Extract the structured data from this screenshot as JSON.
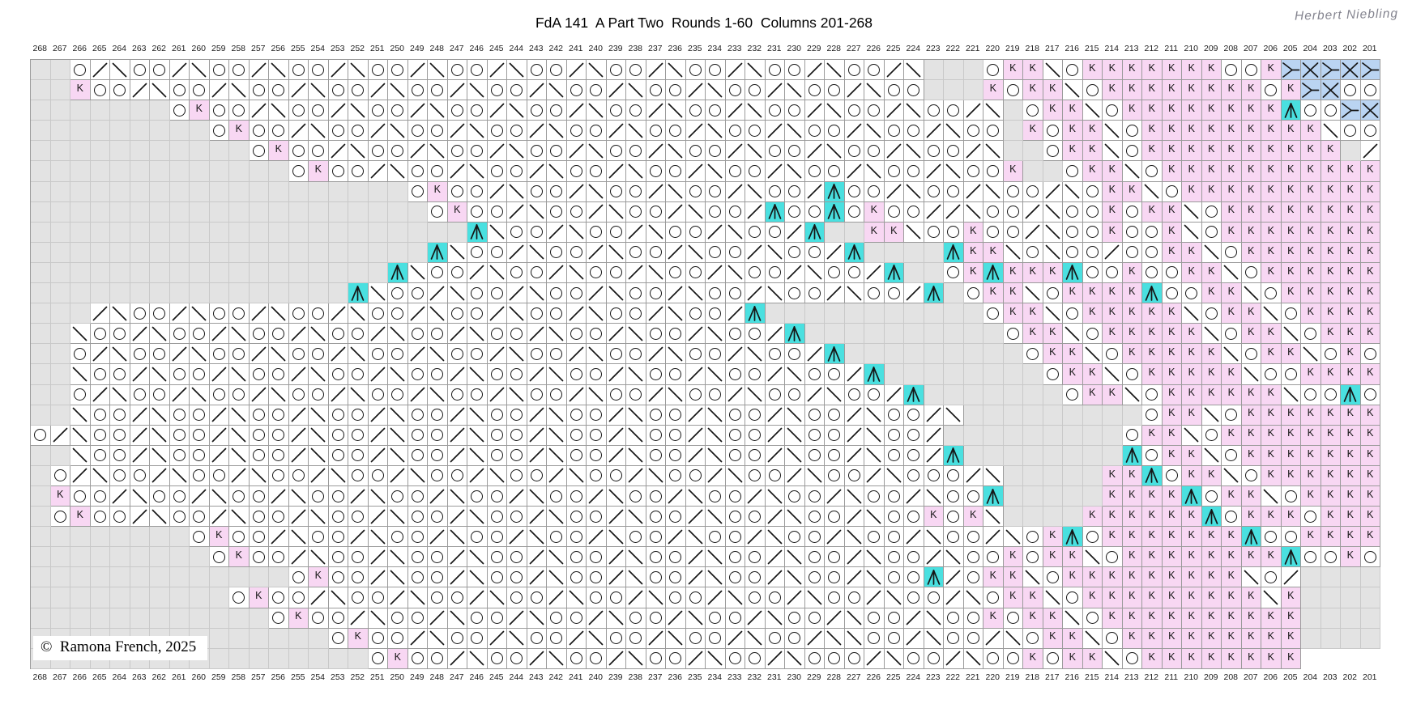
{
  "header": {
    "title": "FdA 141  A Part Two  Rounds 1-60  Columns 201-268",
    "signature": "Herbert Niebling"
  },
  "footer": {
    "copyright": "©  Ramona French, 2025"
  },
  "colors": {
    "pink": "#f8d7f3",
    "cyan": "#4ae0e0",
    "blue": "#bad4f2",
    "no_stitch_gray": "#e3e3e3",
    "grid_line": "#9b9b9b",
    "symbol": "#161616"
  },
  "grid": {
    "knit_letter": "K",
    "legend": {
      ".": "no-stitch",
      "O": "yarn-over",
      "/": "k2tog",
      "\\": "ssk",
      "K": "knit",
      "A": "central-double-decrease",
      "Y": "twist-stitch",
      "X": "crossed-stitch"
    },
    "column_labels": [
      268,
      267,
      266,
      265,
      264,
      263,
      262,
      261,
      260,
      259,
      258,
      257,
      256,
      255,
      254,
      253,
      252,
      251,
      250,
      249,
      248,
      247,
      246,
      245,
      244,
      243,
      242,
      241,
      240,
      239,
      238,
      237,
      236,
      235,
      234,
      233,
      232,
      231,
      230,
      229,
      228,
      227,
      226,
      225,
      224,
      223,
      222,
      221,
      220,
      219,
      218,
      217,
      216,
      215,
      214,
      213,
      212,
      211,
      210,
      209,
      208,
      207,
      206,
      205,
      204,
      203,
      202,
      201
    ],
    "rows": [
      "..O/\\OO/\\OO/\\OO/\\OO/\\OO/\\OO/\\OO/\\OO/\\OO/\\OO/\\...OKK\\OKKKKKKKOOKYXYXY",
      "..KOO/\\OO/\\OO/\\OO/\\OO/\\OO/\\OO/\\OO/\\OO/\\OO/\\OO...KOKK\\OKKKKKKKKOKYXOO",
      ".......OKOO/\\OO/\\OO/\\OO/\\OO/\\OO/\\OO/\\OO/\\OO/\\OO/\\.OKK\\OKKKKKKKKAOOYX",
      ".........OKOO/\\OO/\\OO/\\OO/\\OO/\\OO/\\OO/\\OO/\\OO/\\OO.KOKK\\OKKKKKKKKK\\OO",
      "...........OKOO/\\OO/\\OO/\\OO/\\OO/\\OO/\\OO/\\OO/\\OO/\\..OKK\\OKKKKKKKKKK./",
      ".............OKOO/\\OO/\\OO/\\OO/\\OO/\\OO/\\OO/\\OO/\\OOK..OKK\\OKKKKKKKKKKK",
      "...................OKOO/\\OO/\\OO/\\OO/\\OO/AOO/\\OO/\\OO/\\OKK\\OKKKKKKKKKK",
      "....................OKOO/\\OO/\\OO/\\OO/AOOAOKOO//\\OO/\\OOKOKK\\OKKKKKKKK",
      "......................A\\OO/\\OO/\\OO/\\OO/A..KK\\OOKOO/\\OOKOOK\\OKKKKKKKK",
      "....................A\\OO/\\OO/\\OO/\\OO/\\OO/A....AKK\\O\\OO/OOKK\\OKKKKKKK",
      "..................A\\OO/\\OO/\\OO/\\OO/\\OO/\\OO/A..OKAKKKAOOKOOKK\\OKKKKKK",
      "................A\\OO/\\OO/\\OO/\\OO/\\OO/\\OO/\\OO/A.OKK\\OKKKKAOOKK\\OKKKKK",
      ".../\\OO/\\OO/\\OO/\\OO/\\OO/\\OO/\\OO/\\OO/A...........OKK\\OKKKKK\\OKK\\OKKKK",
      "..\\OO/\\OO/\\OO/\\OO/\\OO/\\OO/\\OO/\\OO/\\OO/A..........OKK\\OKKKKK\\OKK\\OKKK",
      "..O/\\OO/\\OO/\\OO/\\OO/\\OO/\\OO/\\OO/\\OO/\\OO/A.........OKK\\OKKKKK\\OKK\\OKO",
      "..\\OO/\\OO/\\OO/\\OO/\\OO/\\OO/\\OO/\\OO/\\OO/\\OO/A........OKK\\OKKKKK\\OOKKKK",
      "..O/\\OO/\\OO/\\OO/\\OO/\\OO/\\OO/\\OO/\\OO/\\OO/\\OO/A.......OKK\\OKKKKKK\\OOAO",
      "..\\OO/\\OO/\\OO/\\OO/\\OO/\\OO/\\OO/\\OO/\\OO/\\OO/\\OO/\\.........OKK\\OKKKKKKK",
      "O/\\OO/\\OO/\\OO/\\OO/\\OO/\\OO/\\OO/\\OO/\\OO/\\OO/\\OO/.........OKK\\OKKKKKKKK",
      "..\\OO/\\OO/\\OO/\\OO/\\OO/\\OO/\\OO/\\OO/\\OO/\\OO/\\OO/A........AOKK\\OKKKKKKK",
      ".O/\\OO/\\OO/\\OO/\\OO/\\OO/\\OO/\\OO/\\OO/\\OO/\\OO/\\OOO/\\.....KKAOKK\\OKKKKKK",
      ".KOO/\\OO/\\OO/\\OO/\\OO/\\OO/\\OO/\\OO/\\OO/\\OO/\\OO/\\OOA.....KKKKAOKK\\OKKKK",
      ".OKOO/\\OO/\\OO/\\OO/\\OO/\\OO/\\OO/\\OO/\\OO/\\OO/\\OOKOK\\....KKKKKKAOKKKOKKK",
      "........OKOO/\\OO/\\OO/\\OO/\\OO/\\OO/\\OO/\\OO/\\OO/\\OO/\\OKAOKKKKKKKAOOKKKK",
      ".........OKOO/\\OO/\\OO/\\OO/\\OO/\\OO/\\OO/\\OO/\\OO/\\OOKOKK\\OKKKKKKKKAOOKO",
      ".............OKOO/\\OO/\\OO/\\OO/\\OO/\\OO/\\OO/\\OOA/OKK\\OKKKKKKKKK\\O/",
      "..............OKOO/\\OO/\\OO/\\OO/\\OO/\\OO/\\OO/\\OO/\\OO/\\OKK\\OKKKKKKKKK\\K",
      "................OKOO/\\OO/\\OO/\\OO/\\OO/\\OO/\\OO/\\OO/\\OOKOKK\\OKKKKKKKKKK",
      "...................OKOO/\\OO/\\OO/\\OO/\\OO/\\OO/\\\\OO/\\OO/\\OKK\\OKKKKKKKKK",
      ".....................OKOO/\\OO/\\OO/\\OO/\\OO/\\OOO/\\OO/\\OOKOKK\\OKKKKKKKK"
    ]
  }
}
